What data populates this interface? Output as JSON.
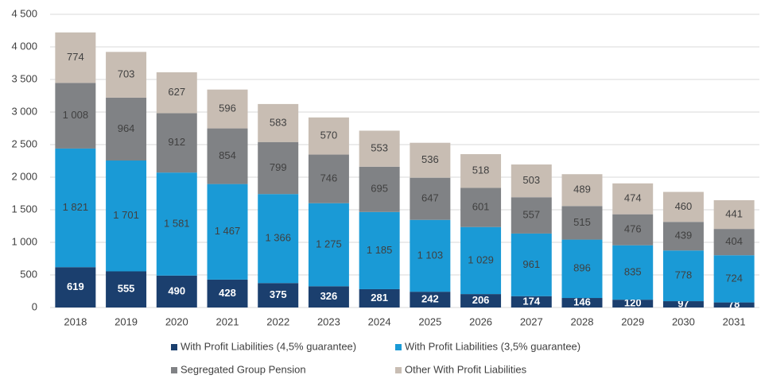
{
  "chart_data": {
    "type": "stacked_bar",
    "categories": [
      "2018",
      "2019",
      "2020",
      "2021",
      "2022",
      "2023",
      "2024",
      "2025",
      "2026",
      "2027",
      "2028",
      "2029",
      "2030",
      "2031"
    ],
    "series": [
      {
        "name": "With Profit Liabilities (4,5% guarantee)",
        "color": "#1b3f6e",
        "label_color": "#ffffff",
        "values": [
          619,
          555,
          490,
          428,
          375,
          326,
          281,
          242,
          206,
          174,
          146,
          120,
          97,
          78
        ]
      },
      {
        "name": "With Profit Liabilities (3,5% guarantee)",
        "color": "#1a9ad6",
        "label_color": "#404040",
        "values": [
          1821,
          1701,
          1581,
          1467,
          1366,
          1275,
          1185,
          1103,
          1029,
          961,
          896,
          835,
          778,
          724
        ],
        "value_labels": [
          "1 821",
          "1 701",
          "1 581",
          "1 467",
          "1 366",
          "1 275",
          "1 185",
          "1 103",
          "1 029",
          "961",
          "896",
          "835",
          "778",
          "724"
        ]
      },
      {
        "name": "Segregated Group Pension",
        "color": "#808285",
        "label_color": "#404040",
        "values": [
          1008,
          964,
          912,
          854,
          799,
          746,
          695,
          647,
          601,
          557,
          515,
          476,
          439,
          404
        ],
        "value_labels": [
          "1 008",
          "964",
          "912",
          "854",
          "799",
          "746",
          "695",
          "647",
          "601",
          "557",
          "515",
          "476",
          "439",
          "404"
        ]
      },
      {
        "name": "Other With Profit Liabilities",
        "color": "#c8bdb3",
        "label_color": "#404040",
        "values": [
          774,
          703,
          627,
          596,
          583,
          570,
          553,
          536,
          518,
          503,
          489,
          474,
          460,
          441
        ]
      }
    ],
    "ylim": [
      0,
      4500
    ],
    "yticks": [
      0,
      500,
      {
        "value": 1000,
        "label": "1 000"
      },
      {
        "value": 1500,
        "label": "1 500"
      },
      {
        "value": 2000,
        "label": "2 000"
      },
      {
        "value": 2500,
        "label": "2 500"
      },
      {
        "value": 3000,
        "label": "3 000"
      },
      {
        "value": 3500,
        "label": "3 500"
      },
      {
        "value": 4000,
        "label": "4 000"
      },
      {
        "value": 4500,
        "label": "4 500"
      }
    ],
    "grid": true,
    "legend": "bottom"
  }
}
